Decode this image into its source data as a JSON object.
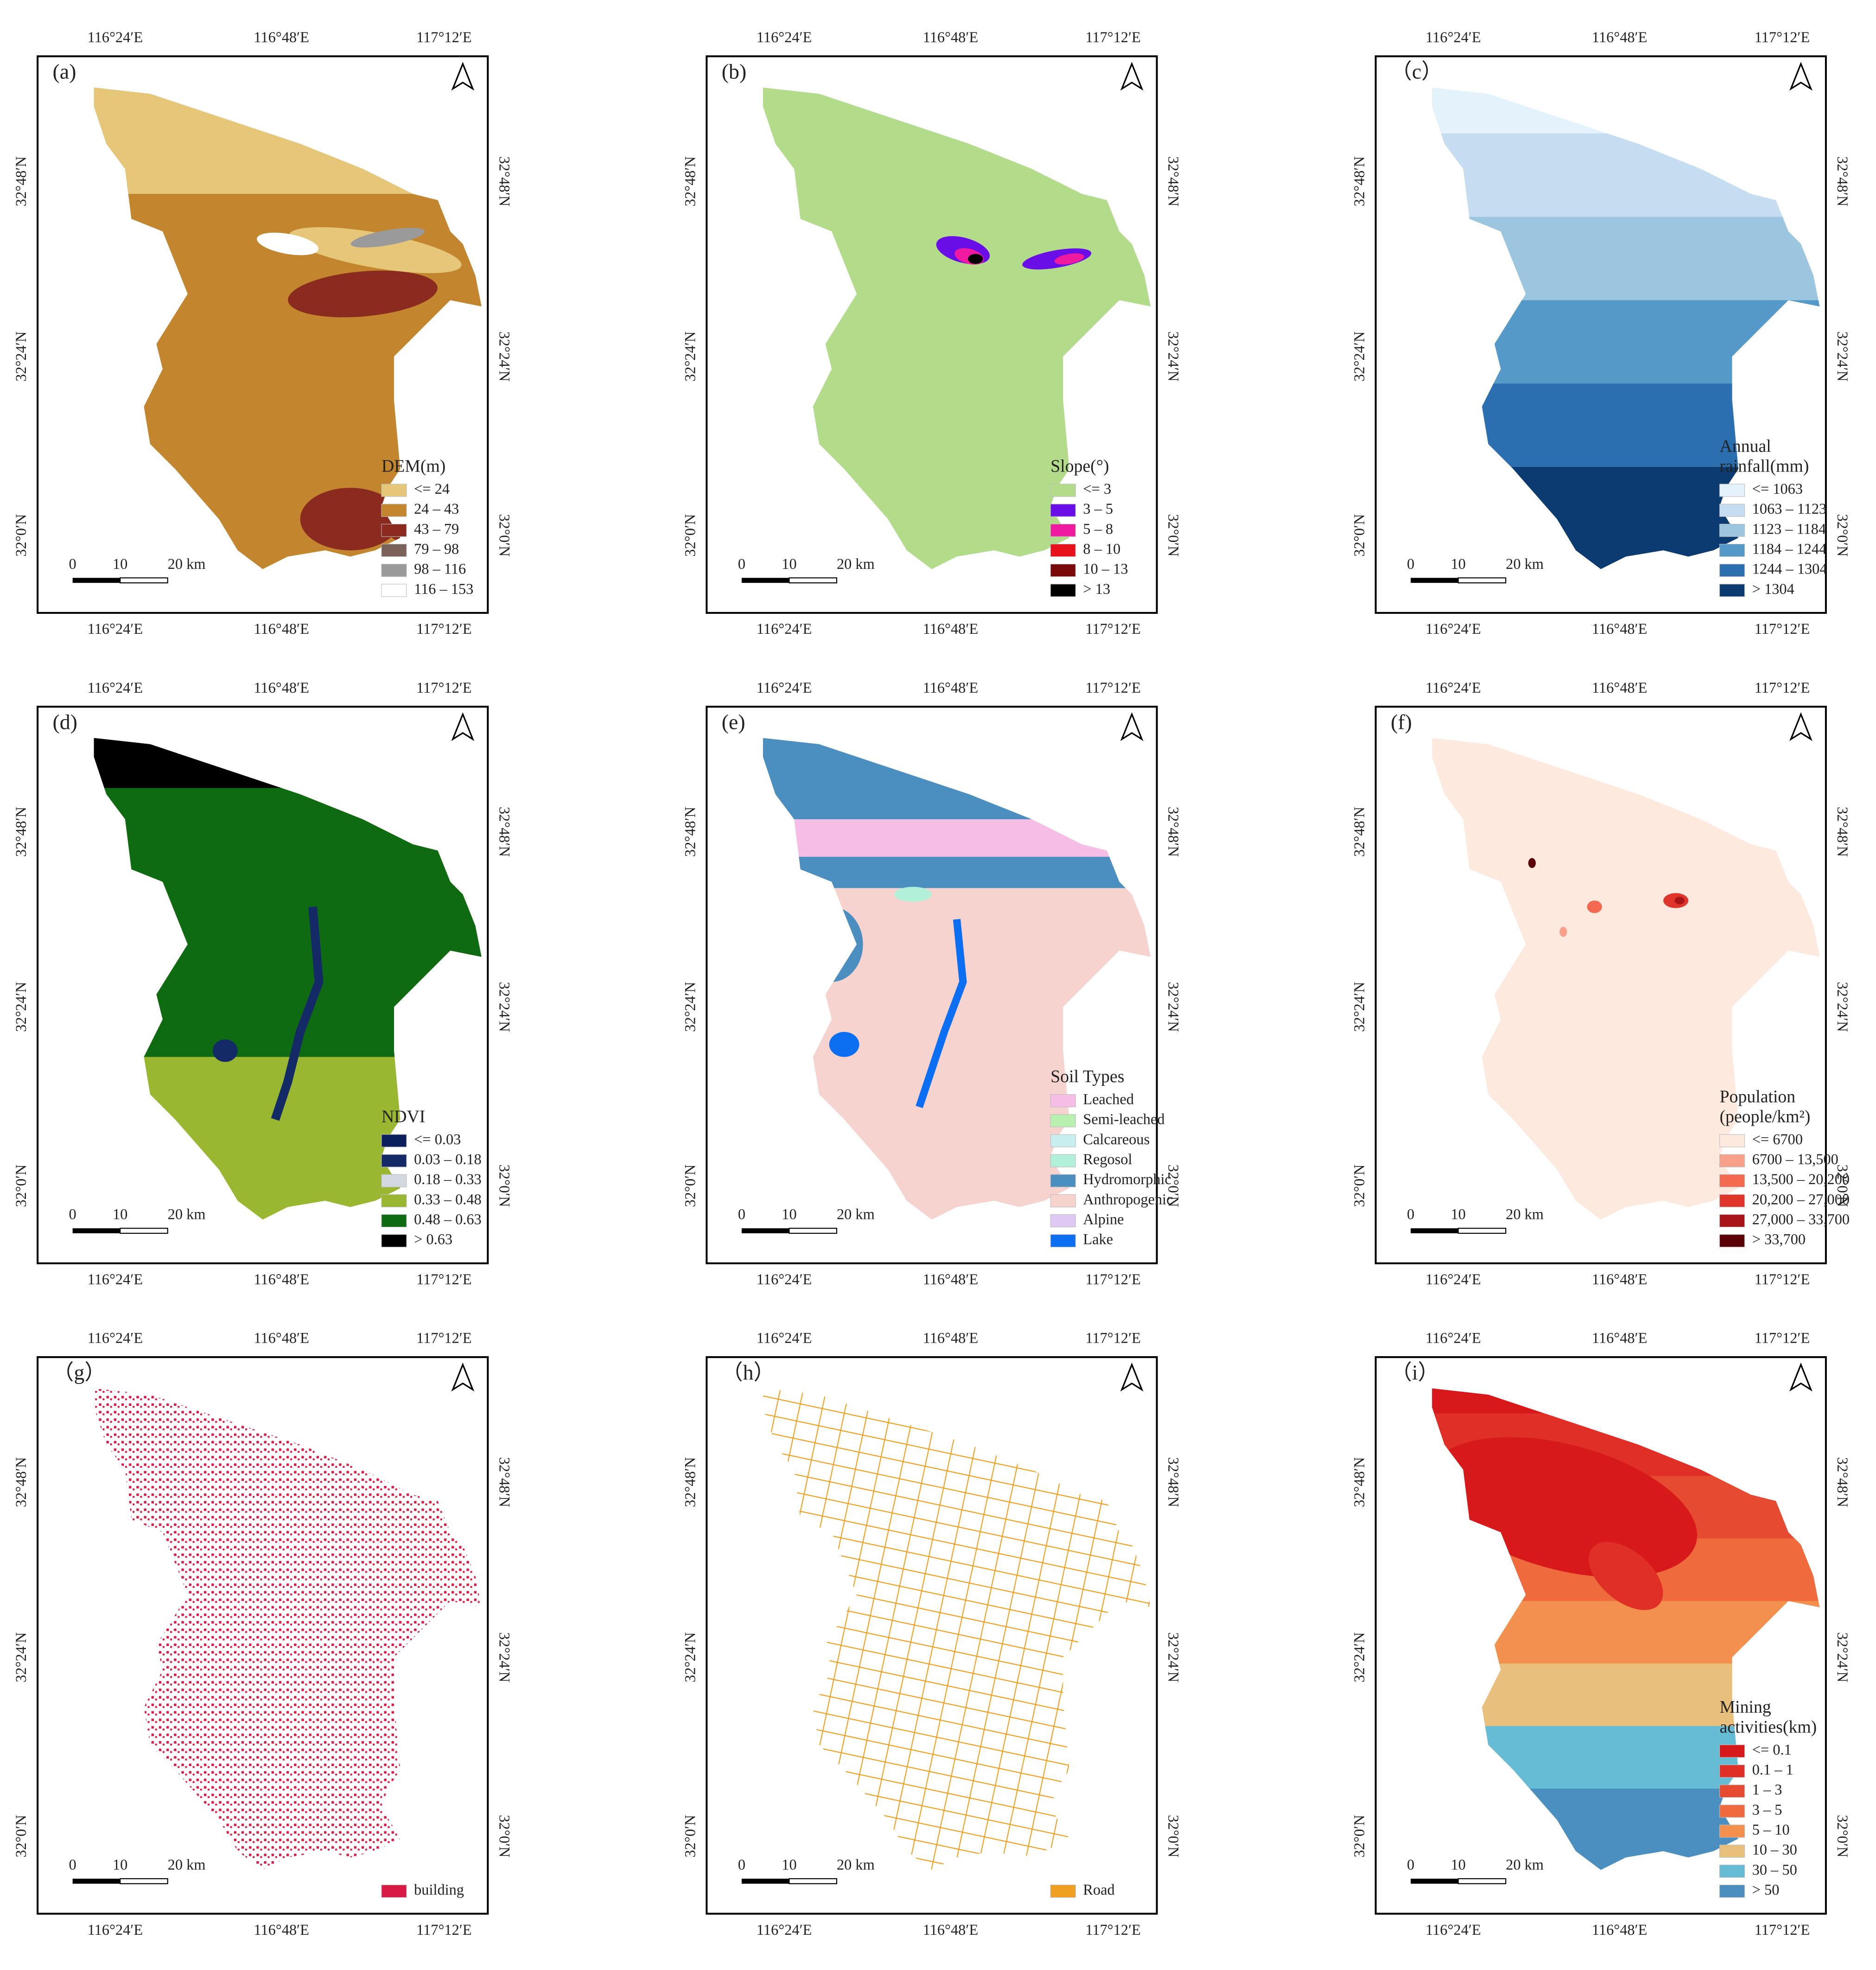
{
  "lon_ticks": [
    "116°24′E",
    "116°48′E",
    "117°12′E"
  ],
  "lat_ticks": [
    "32°48′N",
    "32°24′N",
    "32°0′N"
  ],
  "scale": [
    "0",
    "10",
    "20 km"
  ],
  "panels": [
    {
      "label": "(a)",
      "style": "dem",
      "legend_title": [
        "DEM(m)"
      ],
      "legend": [
        {
          "label": "<= 24",
          "color": "#e6c77a"
        },
        {
          "label": "24 – 43",
          "color": "#c3862f"
        },
        {
          "label": "43 – 79",
          "color": "#8b2b20"
        },
        {
          "label": "79 – 98",
          "color": "#7a625a"
        },
        {
          "label": "98 – 116",
          "color": "#9a9a9a"
        },
        {
          "label": "116 – 153",
          "color": "#ffffff"
        }
      ]
    },
    {
      "label": "(b)",
      "style": "slope",
      "legend_title": [
        "Slope(°)"
      ],
      "legend": [
        {
          "label": "<= 3",
          "color": "#b2db8a"
        },
        {
          "label": "3 – 5",
          "color": "#6a0ee8"
        },
        {
          "label": "5 – 8",
          "color": "#f01aa0"
        },
        {
          "label": "8 – 10",
          "color": "#e8101a"
        },
        {
          "label": "10 – 13",
          "color": "#7a0a0a"
        },
        {
          "label": "> 13",
          "color": "#000000"
        }
      ]
    },
    {
      "label": "（c）",
      "style": "bands",
      "legend_title": [
        "Annual",
        "rainfall(mm)"
      ],
      "legend": [
        {
          "label": "<= 1063",
          "color": "#e3f2fb"
        },
        {
          "label": "1063 – 1123",
          "color": "#c6dcf0"
        },
        {
          "label": "1123 – 1184",
          "color": "#9cc6e0"
        },
        {
          "label": "1184 – 1244",
          "color": "#5499c8"
        },
        {
          "label": "1244 – 1304",
          "color": "#2c6fb0"
        },
        {
          "label": "> 1304",
          "color": "#0c3b72"
        }
      ]
    },
    {
      "label": "(d)",
      "style": "ndvi",
      "legend_title": [
        "NDVI"
      ],
      "legend": [
        {
          "label": "<= 0.03",
          "color": "#0b1f5c"
        },
        {
          "label": "0.03 – 0.18",
          "color": "#142a66"
        },
        {
          "label": "0.18 – 0.33",
          "color": "#d4d8e0"
        },
        {
          "label": "0.33 – 0.48",
          "color": "#9ab731"
        },
        {
          "label": "0.48 – 0.63",
          "color": "#0f6b12"
        },
        {
          "label": "> 0.63",
          "color": "#000000"
        }
      ]
    },
    {
      "label": "(e)",
      "style": "soil",
      "legend_title": [
        "Soil Types"
      ],
      "legend": [
        {
          "label": "Leached",
          "color": "#f6bde6"
        },
        {
          "label": "Semi-leached",
          "color": "#b8f0b0"
        },
        {
          "label": "Calcareous",
          "color": "#c8eef0"
        },
        {
          "label": "Regosol",
          "color": "#b2f0da"
        },
        {
          "label": "Hydromorphic",
          "color": "#4a8fc0"
        },
        {
          "label": "Anthropogenic",
          "color": "#f7d3cf"
        },
        {
          "label": "Alpine",
          "color": "#e0c8f4"
        },
        {
          "label": "Lake",
          "color": "#0c6ef0"
        }
      ]
    },
    {
      "label": "(f)",
      "style": "pop",
      "legend_title": [
        "Population",
        "(people/km²)"
      ],
      "legend": [
        {
          "label": "<= 6700",
          "color": "#fde9de"
        },
        {
          "label": "6700 – 13,500",
          "color": "#f8a08a"
        },
        {
          "label": "13,500 – 20,200",
          "color": "#f46a50"
        },
        {
          "label": "20,200 – 27,000",
          "color": "#e0352a"
        },
        {
          "label": "27,000 – 33,700",
          "color": "#a81418"
        },
        {
          "label": "> 33,700",
          "color": "#5c0008"
        }
      ]
    },
    {
      "label": "（g）",
      "style": "dots",
      "legend_title": [],
      "legend": [
        {
          "label": "building",
          "color": "#d81a44"
        }
      ]
    },
    {
      "label": "（h）",
      "style": "roads",
      "legend_title": [],
      "legend": [
        {
          "label": "Road",
          "color": "#f0a020"
        }
      ]
    },
    {
      "label": "（i）",
      "style": "bands",
      "legend_title": [
        "Mining",
        "activities(km)"
      ],
      "legend": [
        {
          "label": "<= 0.1",
          "color": "#d7191c"
        },
        {
          "label": "0.1 – 1",
          "color": "#df2f26"
        },
        {
          "label": "1 – 3",
          "color": "#e64a30"
        },
        {
          "label": "3 – 5",
          "color": "#ef6a3c"
        },
        {
          "label": "5 – 10",
          "color": "#f4904e"
        },
        {
          "label": "10 – 30",
          "color": "#e8c07c"
        },
        {
          "label": "30 – 50",
          "color": "#66bcd4"
        },
        {
          "label": "> 50",
          "color": "#4a8fc0"
        }
      ]
    }
  ]
}
